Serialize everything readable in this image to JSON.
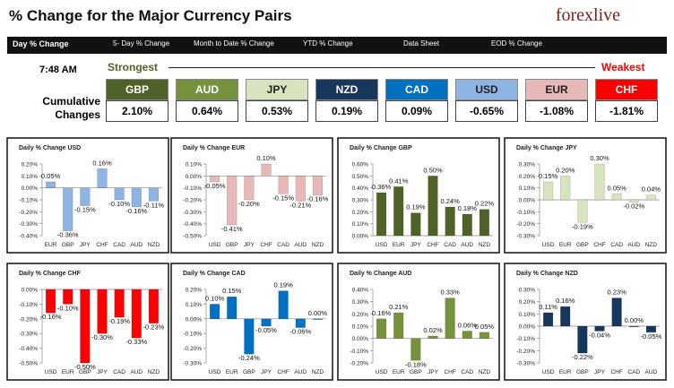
{
  "header": {
    "title": "% Change for the Major Currency Pairs",
    "logo": "forexlive"
  },
  "tabs": [
    "Day % Change",
    "5- Day % Change",
    "Month to Date % Change",
    "YTD % Change",
    "Data Sheet",
    "EOD % Change"
  ],
  "time": "7:48 AM",
  "strongest": "Strongest",
  "weakest": "Weakest",
  "summary_label": "Cumulative Changes",
  "summary": {
    "currencies": [
      "GBP",
      "AUD",
      "JPY",
      "NZD",
      "CAD",
      "USD",
      "EUR",
      "CHF"
    ],
    "values": [
      "2.10%",
      "0.64%",
      "0.53%",
      "0.19%",
      "0.09%",
      "-0.65%",
      "-1.08%",
      "-1.81%"
    ],
    "colors": [
      "#4f6228",
      "#76923c",
      "#d7e4bd",
      "#17375e",
      "#0070c0",
      "#8db4e2",
      "#e6b9b8",
      "#ff0000"
    ]
  },
  "chart_data": [
    {
      "type": "bar",
      "title": "Daily % Change USD",
      "categories": [
        "EUR",
        "GBP",
        "JPY",
        "CHF",
        "CAD",
        "AUD",
        "NZD"
      ],
      "values": [
        0.05,
        -0.36,
        -0.15,
        0.16,
        -0.1,
        -0.16,
        -0.11
      ],
      "value_labels": [
        "0.05%",
        "-0.36%",
        "-0.15%",
        "0.16%",
        "-0.10%",
        "-0.16%",
        "-0.11%"
      ],
      "color": "#8db4e2",
      "ylim": [
        -0.4,
        0.2
      ],
      "yticks": [
        {
          "value": 0.2,
          "label": "0.20%"
        },
        {
          "value": 0.1,
          "label": "0.10%"
        },
        {
          "value": 0,
          "label": "0.00%"
        },
        {
          "value": -0.1,
          "label": "-0.10%"
        },
        {
          "value": -0.2,
          "label": "-0.20%"
        },
        {
          "value": -0.3,
          "label": "-0.30%"
        },
        {
          "value": -0.4,
          "label": "-0.40%"
        }
      ]
    },
    {
      "type": "bar",
      "title": "Daily % Change EUR",
      "categories": [
        "USD",
        "GBP",
        "JPY",
        "CHF",
        "CAD",
        "AUD",
        "NZD"
      ],
      "values": [
        -0.05,
        -0.41,
        -0.2,
        0.1,
        -0.15,
        -0.21,
        -0.16
      ],
      "value_labels": [
        "-0.05%",
        "-0.41%",
        "-0.20%",
        "0.10%",
        "-0.15%",
        "-0.21%",
        "-0.16%"
      ],
      "color": "#e6b9b8",
      "ylim": [
        -0.5,
        0.1
      ],
      "yticks": [
        {
          "value": 0.1,
          "label": "0.10%"
        },
        {
          "value": 0,
          "label": "0.00%"
        },
        {
          "value": -0.1,
          "label": "-0.10%"
        },
        {
          "value": -0.2,
          "label": "-0.20%"
        },
        {
          "value": -0.3,
          "label": "-0.30%"
        },
        {
          "value": -0.4,
          "label": "-0.40%"
        },
        {
          "value": -0.5,
          "label": "-0.50%"
        }
      ]
    },
    {
      "type": "bar",
      "title": "Daily % Change GBP",
      "categories": [
        "USD",
        "EUR",
        "JPY",
        "CHF",
        "CAD",
        "AUD",
        "NZD"
      ],
      "values": [
        0.36,
        0.41,
        0.19,
        0.5,
        0.24,
        0.18,
        0.22
      ],
      "value_labels": [
        "0.36%",
        "0.41%",
        "0.19%",
        "0.50%",
        "0.24%",
        "0.18%",
        "0.22%"
      ],
      "color": "#4f6228",
      "ylim": [
        0,
        0.6
      ],
      "yticks": [
        {
          "value": 0.6,
          "label": "0.60%"
        },
        {
          "value": 0.5,
          "label": "0.50%"
        },
        {
          "value": 0.4,
          "label": "0.40%"
        },
        {
          "value": 0.3,
          "label": "0.30%"
        },
        {
          "value": 0.2,
          "label": "0.20%"
        },
        {
          "value": 0.1,
          "label": "0.10%"
        },
        {
          "value": 0,
          "label": "0.00%"
        }
      ]
    },
    {
      "type": "bar",
      "title": "Daily % Change JPY",
      "categories": [
        "USD",
        "EUR",
        "GBP",
        "CHF",
        "CAD",
        "AUD",
        "NZD"
      ],
      "values": [
        0.15,
        0.2,
        -0.19,
        0.3,
        0.05,
        -0.02,
        0.04
      ],
      "value_labels": [
        "0.15%",
        "0.20%",
        "-0.19%",
        "0.30%",
        "0.05%",
        "-0.02%",
        "0.04%"
      ],
      "color": "#d7e4bd",
      "ylim": [
        -0.3,
        0.3
      ],
      "yticks": [
        {
          "value": 0.3,
          "label": "0.30%"
        },
        {
          "value": 0.2,
          "label": "0.20%"
        },
        {
          "value": 0.1,
          "label": "0.10%"
        },
        {
          "value": 0,
          "label": "0.00%"
        },
        {
          "value": -0.1,
          "label": "-0.10%"
        },
        {
          "value": -0.2,
          "label": "-0.20%"
        },
        {
          "value": -0.3,
          "label": "-0.30%"
        }
      ]
    },
    {
      "type": "bar",
      "title": "Daily % Change CHF",
      "categories": [
        "USD",
        "EUR",
        "GBP",
        "JPY",
        "CAD",
        "AUD",
        "NZD"
      ],
      "values": [
        -0.16,
        -0.1,
        -0.5,
        -0.3,
        -0.19,
        -0.33,
        -0.23
      ],
      "value_labels": [
        "-0.16%",
        "-0.10%",
        "-0.50%",
        "-0.30%",
        "-0.19%",
        "-0.33%",
        "-0.23%"
      ],
      "color": "#ff0000",
      "ylim": [
        -0.5,
        0
      ],
      "yticks": [
        {
          "value": 0,
          "label": "0.00%"
        },
        {
          "value": -0.1,
          "label": "-0.10%"
        },
        {
          "value": -0.2,
          "label": "-0.20%"
        },
        {
          "value": -0.3,
          "label": "-0.30%"
        },
        {
          "value": -0.4,
          "label": "-0.40%"
        },
        {
          "value": -0.5,
          "label": "-0.50%"
        }
      ]
    },
    {
      "type": "bar",
      "title": "Daily % Change CAD",
      "categories": [
        "USD",
        "EUR",
        "GBP",
        "JPY",
        "CHF",
        "AUD",
        "NZD"
      ],
      "values": [
        0.1,
        0.15,
        -0.24,
        -0.05,
        0.19,
        -0.06,
        0.0
      ],
      "value_labels": [
        "0.10%",
        "0.15%",
        "-0.24%",
        "-0.05%",
        "0.19%",
        "-0.06%",
        "0.00%"
      ],
      "color": "#0070c0",
      "ylim": [
        -0.3,
        0.2
      ],
      "yticks": [
        {
          "value": 0.2,
          "label": "0.20%"
        },
        {
          "value": 0.1,
          "label": "0.10%"
        },
        {
          "value": 0,
          "label": "0.00%"
        },
        {
          "value": -0.1,
          "label": "-0.10%"
        },
        {
          "value": -0.2,
          "label": "-0.20%"
        },
        {
          "value": -0.3,
          "label": "-0.30%"
        }
      ]
    },
    {
      "type": "bar",
      "title": "Daily % Change AUD",
      "categories": [
        "USD",
        "EUR",
        "GBP",
        "JPY",
        "CHF",
        "CAD",
        "NZD"
      ],
      "values": [
        0.16,
        0.21,
        -0.18,
        0.02,
        0.33,
        0.06,
        0.05
      ],
      "value_labels": [
        "0.16%",
        "0.21%",
        "-0.18%",
        "0.02%",
        "0.33%",
        "0.06%",
        "0.05%"
      ],
      "color": "#76923c",
      "ylim": [
        -0.2,
        0.4
      ],
      "yticks": [
        {
          "value": 0.4,
          "label": "0.40%"
        },
        {
          "value": 0.3,
          "label": "0.30%"
        },
        {
          "value": 0.2,
          "label": "0.20%"
        },
        {
          "value": 0.1,
          "label": "0.10%"
        },
        {
          "value": 0,
          "label": "0.00%"
        },
        {
          "value": -0.1,
          "label": "-0.10%"
        },
        {
          "value": -0.2,
          "label": "-0.20%"
        }
      ]
    },
    {
      "type": "bar",
      "title": "Daily % Change NZD",
      "categories": [
        "USD",
        "EUR",
        "GBP",
        "JPY",
        "CHF",
        "CAD",
        "AUD"
      ],
      "values": [
        0.11,
        0.16,
        -0.22,
        -0.04,
        0.23,
        0.0,
        -0.05
      ],
      "value_labels": [
        "0.11%",
        "0.16%",
        "-0.22%",
        "-0.04%",
        "0.23%",
        "0.00%",
        "-0.05%"
      ],
      "color": "#17375e",
      "ylim": [
        -0.3,
        0.3
      ],
      "yticks": [
        {
          "value": 0.3,
          "label": "0.30%"
        },
        {
          "value": 0.2,
          "label": "0.20%"
        },
        {
          "value": 0.1,
          "label": "0.10%"
        },
        {
          "value": 0,
          "label": "0.00%"
        },
        {
          "value": -0.1,
          "label": "-0.10%"
        },
        {
          "value": -0.2,
          "label": "-0.20%"
        },
        {
          "value": -0.3,
          "label": "-0.30%"
        }
      ]
    }
  ]
}
